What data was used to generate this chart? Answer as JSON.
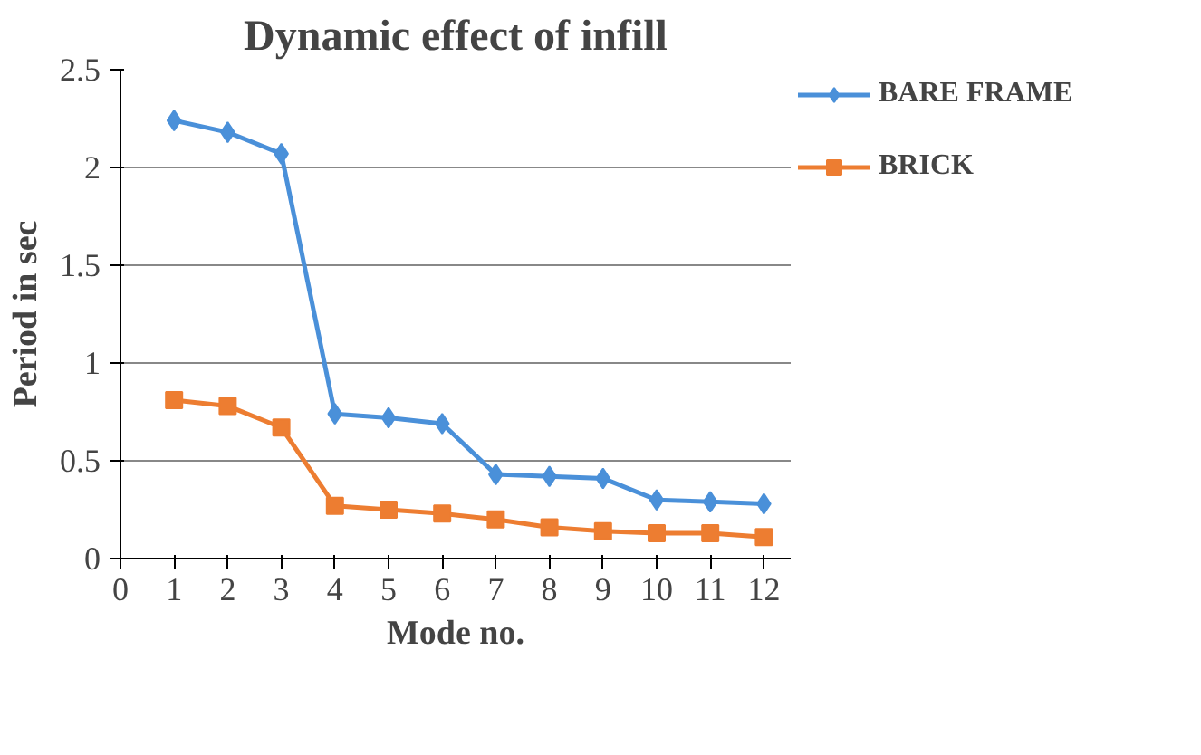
{
  "chart_data": {
    "type": "line",
    "title": "Dynamic effect of infill",
    "xlabel": "Mode no.",
    "ylabel": "Period in sec",
    "x": [
      1,
      2,
      3,
      4,
      5,
      6,
      7,
      8,
      9,
      10,
      11,
      12
    ],
    "series": [
      {
        "name": "BARE FRAME",
        "color": "#4a90d9",
        "marker": "diamond",
        "values": [
          2.24,
          2.18,
          2.07,
          0.74,
          0.72,
          0.69,
          0.43,
          0.42,
          0.41,
          0.3,
          0.29,
          0.28
        ]
      },
      {
        "name": "BRICK",
        "color": "#ed7d31",
        "marker": "square",
        "values": [
          0.81,
          0.78,
          0.67,
          0.27,
          0.25,
          0.23,
          0.2,
          0.16,
          0.14,
          0.13,
          0.13,
          0.11
        ]
      }
    ],
    "xlim": [
      0,
      12.5
    ],
    "xticks": [
      0,
      1,
      2,
      3,
      4,
      5,
      6,
      7,
      8,
      9,
      10,
      11,
      12
    ],
    "ylim": [
      0,
      2.5
    ],
    "yticks": [
      0,
      0.5,
      1,
      1.5,
      2,
      2.5
    ],
    "grid": "y",
    "legend": "right",
    "line_style": "solid"
  }
}
